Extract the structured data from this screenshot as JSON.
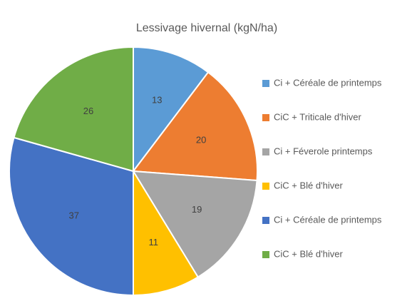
{
  "chart_data": {
    "type": "pie",
    "title": "Lessivage hivernal (kgN/ha)",
    "categories": [
      "Ci + Céréale de printemps",
      "CiC + Triticale d'hiver",
      "Ci + Féverole printemps",
      "CiC + Blé d'hiver",
      "Ci + Céréale de printemps",
      "CiC + Blé d'hiver"
    ],
    "values": [
      13,
      20,
      19,
      11,
      37,
      26
    ],
    "colors": [
      "#5b9bd5",
      "#ed7d31",
      "#a5a5a5",
      "#ffc000",
      "#4472c4",
      "#70ad47"
    ],
    "legend": "right"
  }
}
